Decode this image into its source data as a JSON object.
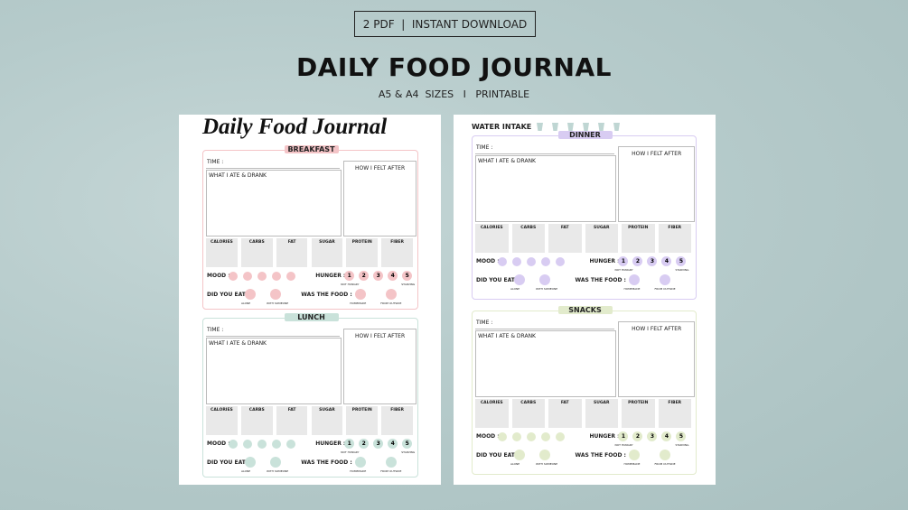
{
  "banner": {
    "badge": "2 PDF  |  INSTANT DOWNLOAD",
    "title": "DAILY FOOD JOURNAL",
    "subtitle": "A5 & A4  SIZES   I   PRINTABLE"
  },
  "pages": [
    {
      "heading": "Daily Food Journal",
      "sections": [
        {
          "name": "BREAKFAST",
          "color": "#f4c4c7"
        },
        {
          "name": "LUNCH",
          "color": "#c9e2da"
        }
      ]
    },
    {
      "heading": "WATER INTAKE",
      "sections": [
        {
          "name": "DINNER",
          "color": "#d8ccf2"
        },
        {
          "name": "SNACKS",
          "color": "#e2ebcc"
        }
      ]
    }
  ],
  "form": {
    "time": "TIME :",
    "ate": "WHAT I ATE & DRANK",
    "felt": "HOW I FELT AFTER",
    "nutrients": [
      "CALORIES",
      "CARBS",
      "FAT",
      "SUGAR",
      "PROTEIN",
      "FIBER"
    ],
    "mood": "MOOD :",
    "hunger": "HUNGER :",
    "hunger_scale": [
      1,
      2,
      3,
      4,
      5
    ],
    "hunger_low": "NOT HUNGRY",
    "hunger_high": "STARVING",
    "did_you_eat": "DID YOU EAT :",
    "eat_options": [
      "ALONE",
      "WITH SOMEONE"
    ],
    "food": "WAS THE FOOD :",
    "food_options": [
      "HOMEMADE",
      "FROM OUTSIDE"
    ]
  }
}
